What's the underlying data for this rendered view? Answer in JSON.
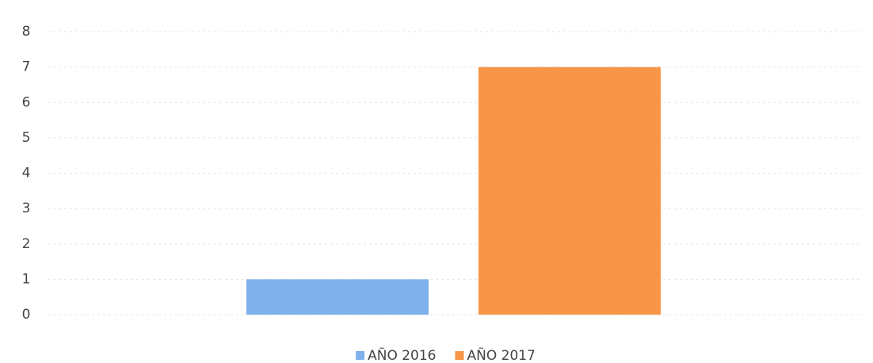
{
  "chart_data": {
    "type": "bar",
    "categories": [
      null
    ],
    "series": [
      {
        "name": "AÑO 2016",
        "color": "#7fb2ea",
        "values": [
          1
        ]
      },
      {
        "name": "AÑO 2017",
        "color": "#f79646",
        "values": [
          7
        ]
      }
    ],
    "ylim": [
      0,
      8
    ],
    "yticks": [
      0,
      1,
      2,
      3,
      4,
      5,
      6,
      7,
      8
    ],
    "grid": true,
    "legend": "bottom"
  }
}
